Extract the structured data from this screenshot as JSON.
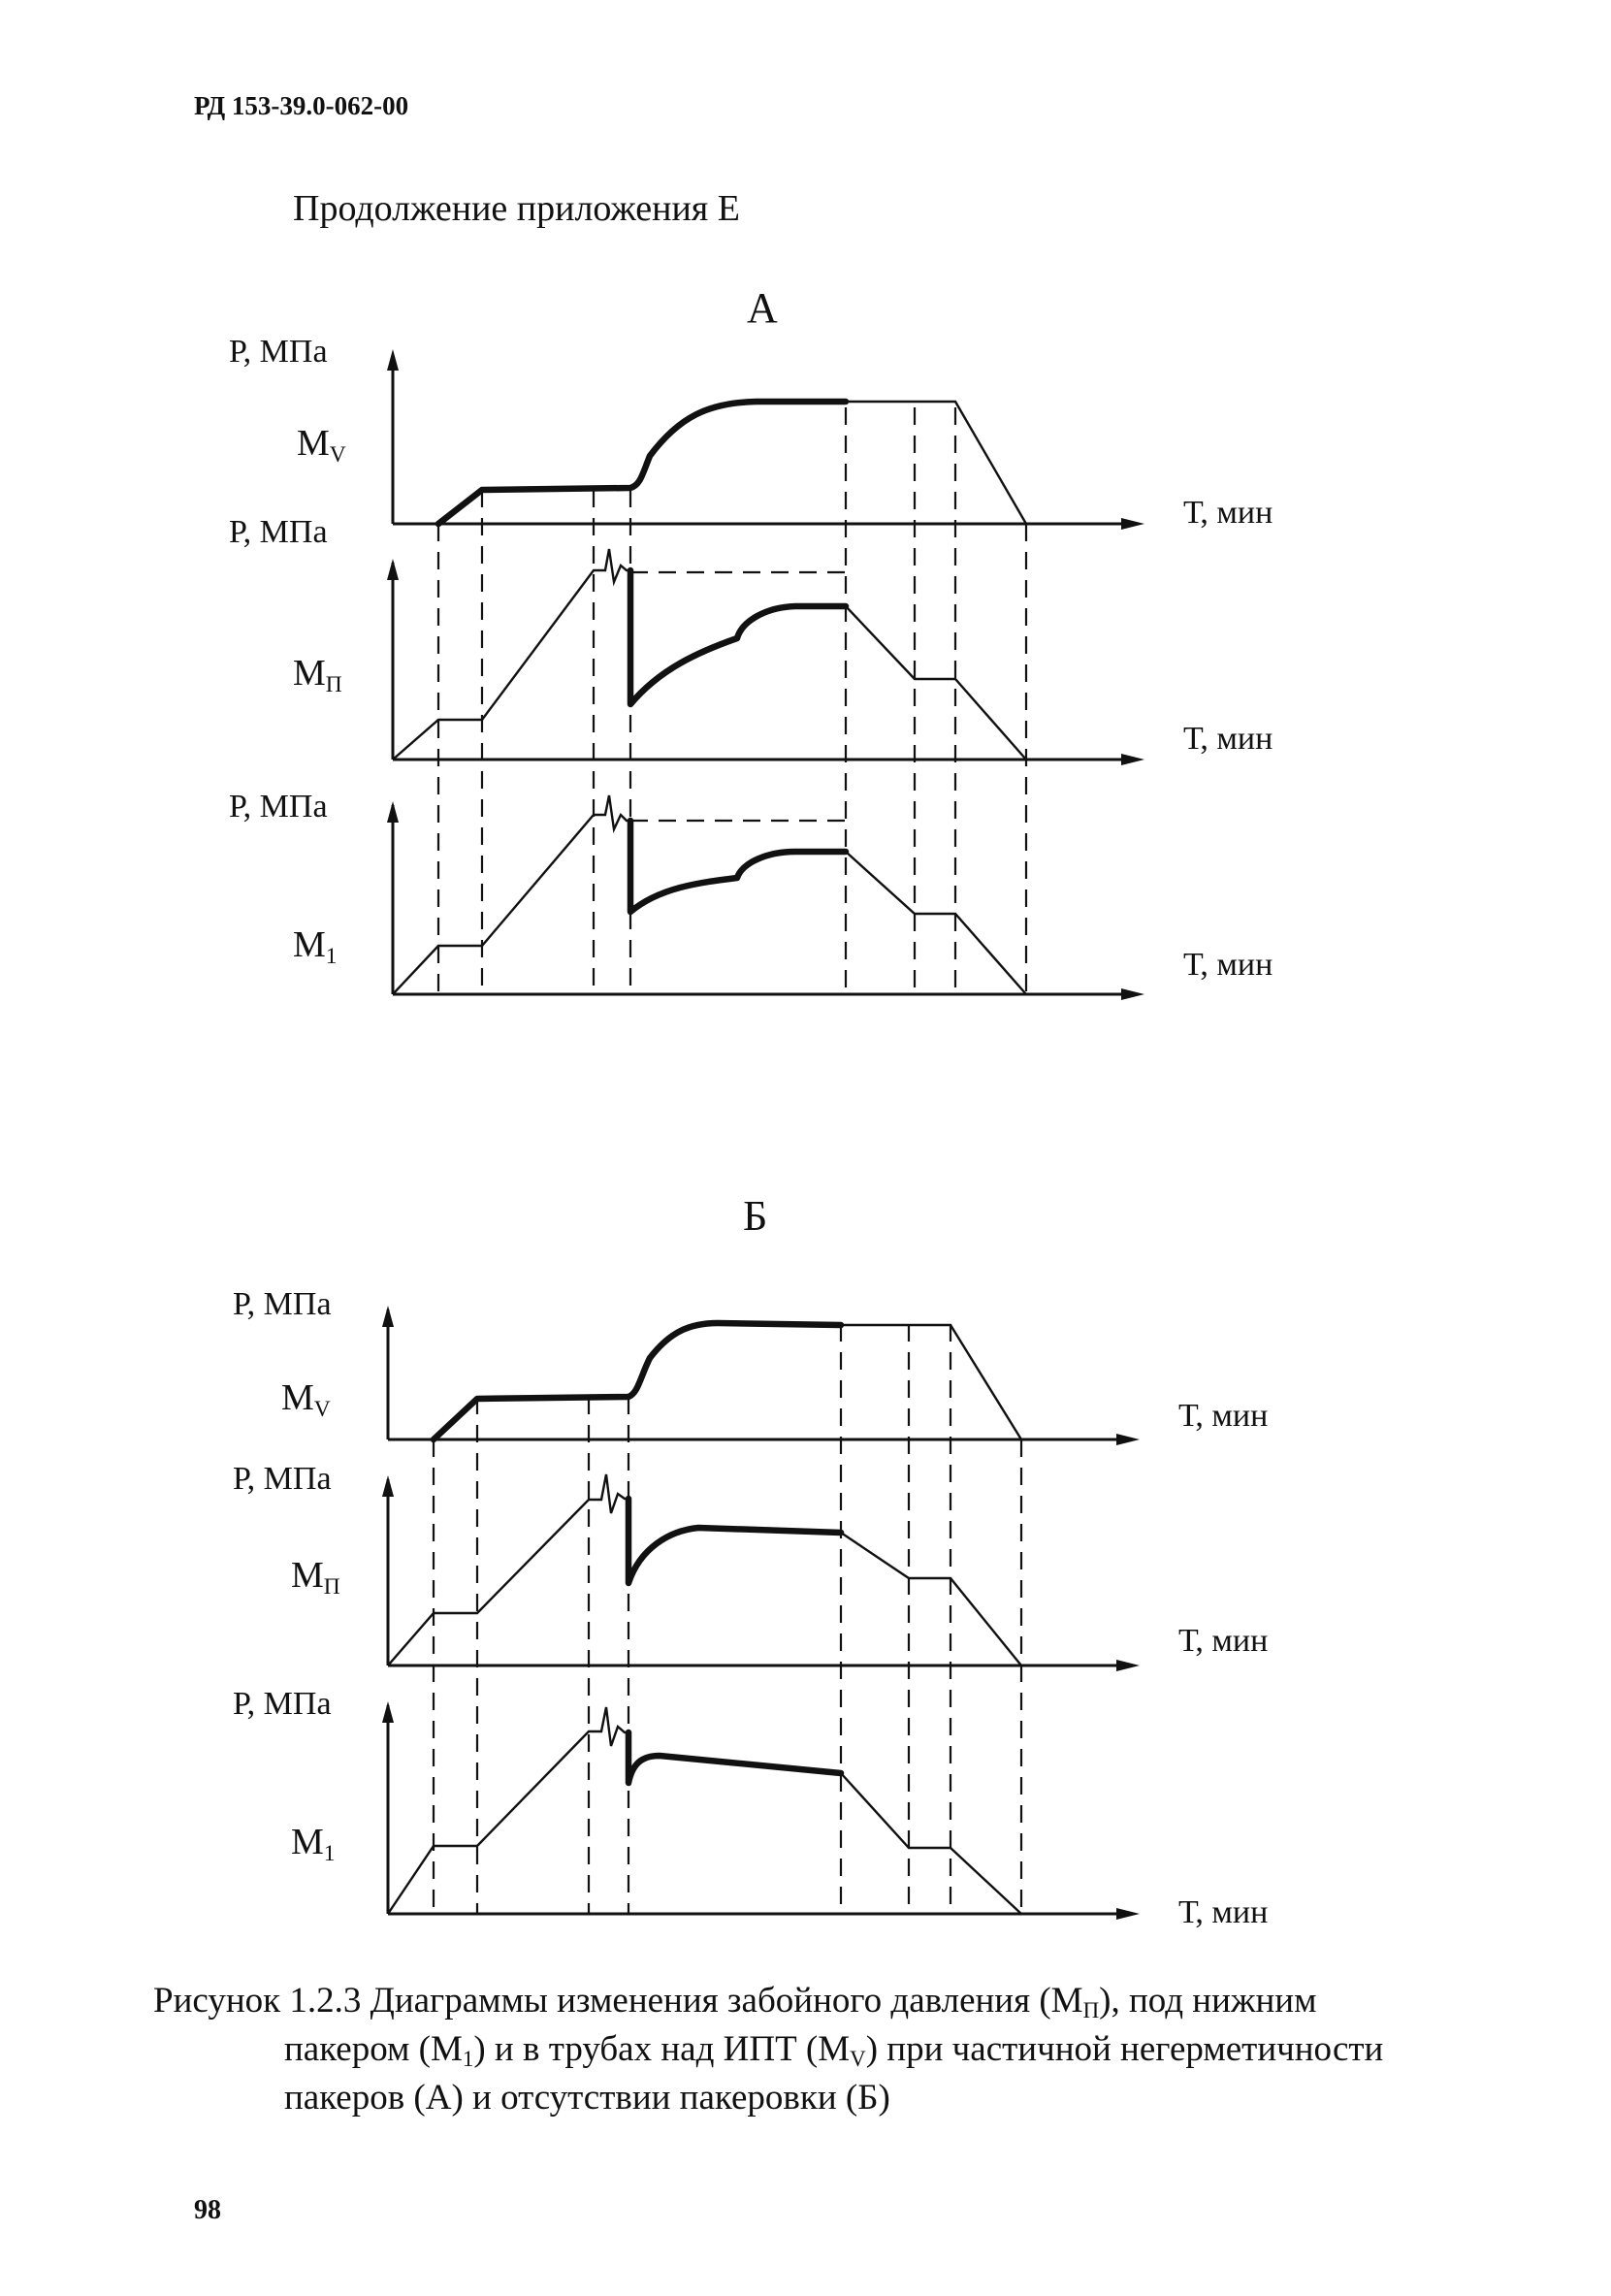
{
  "header": {
    "doc_code": "РД 153-39.0-062-00",
    "heading": "Продолжение приложения Е"
  },
  "diagram_a": {
    "label": "А",
    "axes": {
      "mv": {
        "y_label": "Р, МПа",
        "x_label": "Т, мин",
        "curve_label_main": "М",
        "curve_label_sub": "V"
      },
      "mp": {
        "y_label": "Р, МПа",
        "x_label": "Т, мин",
        "curve_label_main": "М",
        "curve_label_sub": "П"
      },
      "m1": {
        "y_label": "Р, МПа",
        "x_label": "Т, мин",
        "curve_label_main": "М",
        "curve_label_sub": "1"
      }
    }
  },
  "diagram_b": {
    "label": "Б",
    "axes": {
      "mv": {
        "y_label": "Р, МПа",
        "x_label": "Т, мин",
        "curve_label_main": "М",
        "curve_label_sub": "V"
      },
      "mp": {
        "y_label": "Р, МПа",
        "x_label": "Т, мин",
        "curve_label_main": "М",
        "curve_label_sub": "П"
      },
      "m1": {
        "y_label": "Р, МПа",
        "x_label": "Т, мин",
        "curve_label_main": "М",
        "curve_label_sub": "1"
      }
    }
  },
  "caption": {
    "line1_a": "Рисунок 1.2.3 Диаграммы изменения забойного давления (М",
    "line1_sub": "П",
    "line1_b": "), под  нижним",
    "line2_a": "пакером (М",
    "line2_sub1": "1",
    "line2_b": ") и в трубах над ИПТ (М",
    "line2_sub2": "V",
    "line2_c": ") при частичной негерметичности",
    "line3": "пакеров (А) и отсутствии пакеровки (Б)"
  },
  "footer": {
    "page_number": "98"
  }
}
